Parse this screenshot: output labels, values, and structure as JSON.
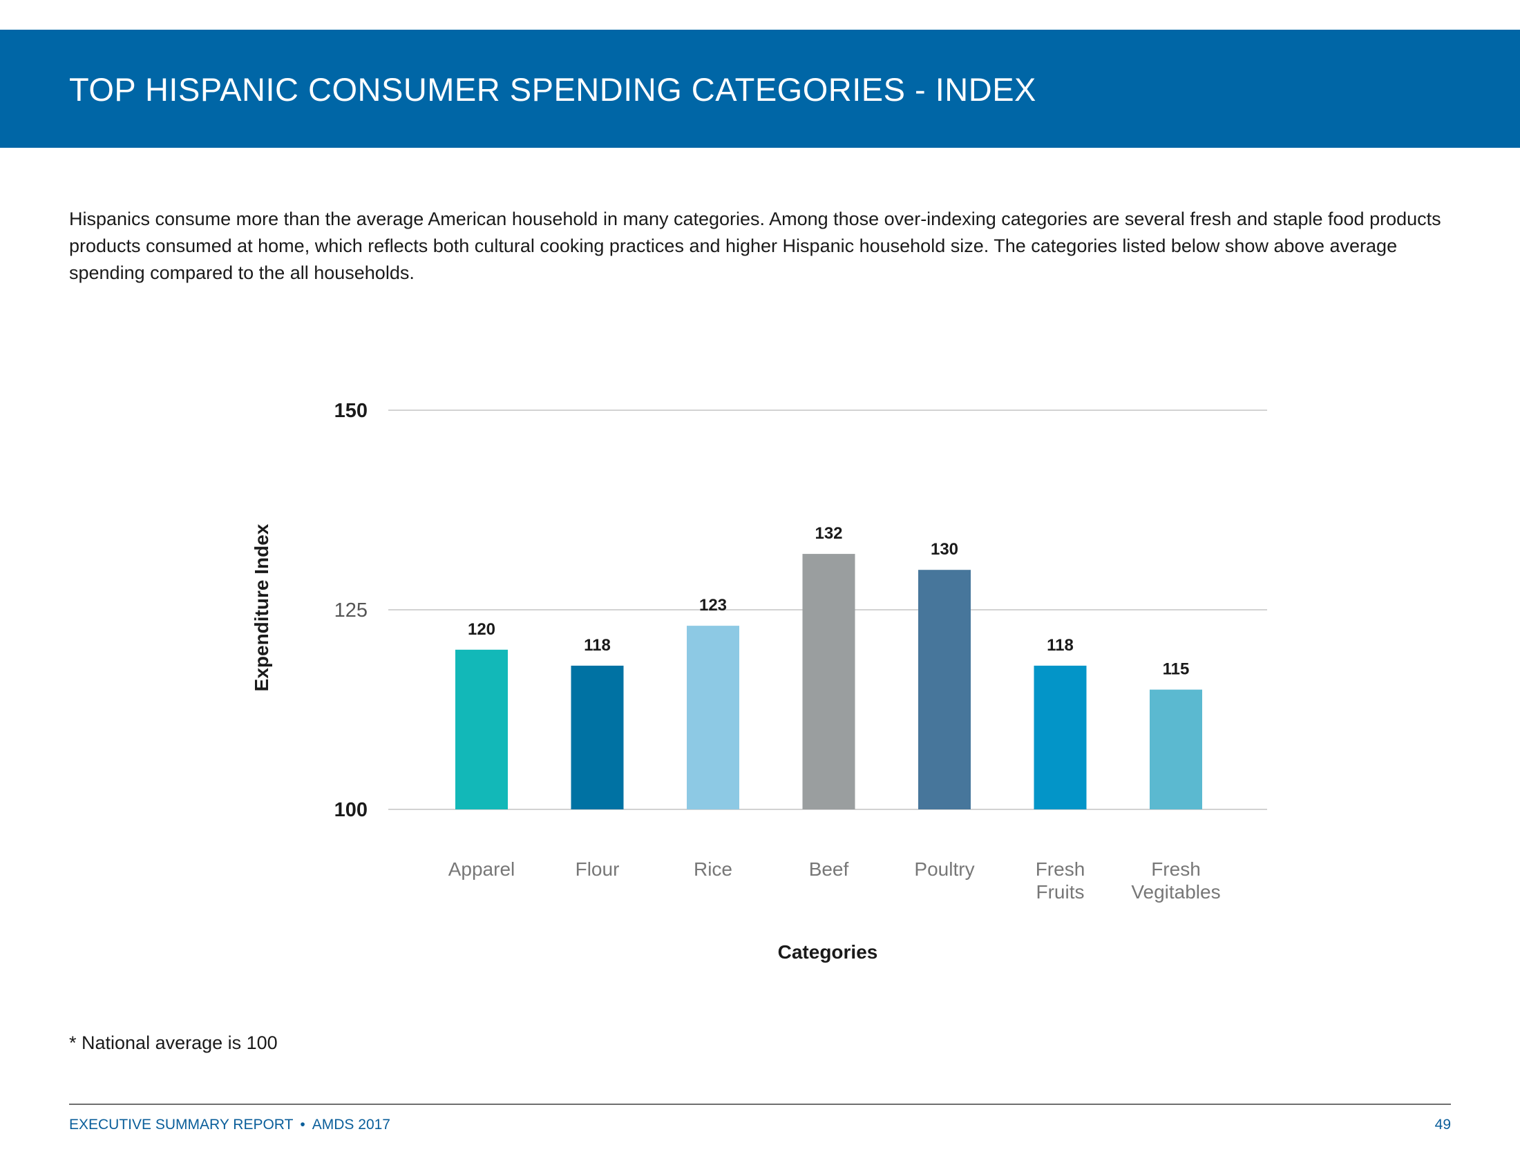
{
  "header": {
    "title": "TOP HISPANIC CONSUMER SPENDING CATEGORIES - INDEX"
  },
  "intro": {
    "text": "Hispanics consume more than the average American household in many categories. Among those over-indexing categories are several fresh and staple food products products consumed at home, which reflects both cultural cooking practices and higher Hispanic household size. The categories listed below show above average spending compared to the all households."
  },
  "chart_data": {
    "type": "bar",
    "title": "",
    "xlabel": "Categories",
    "ylabel": "Expenditure Index",
    "ylim": [
      100,
      150
    ],
    "yticks": [
      {
        "value": 150,
        "label": "150"
      },
      {
        "value": 125,
        "label": "125"
      },
      {
        "value": 100,
        "label": "100"
      }
    ],
    "grid": true,
    "categories": [
      {
        "lines": [
          "Apparel"
        ]
      },
      {
        "lines": [
          "Flour"
        ]
      },
      {
        "lines": [
          "Rice"
        ]
      },
      {
        "lines": [
          "Beef"
        ]
      },
      {
        "lines": [
          "Poultry"
        ]
      },
      {
        "lines": [
          "Fresh",
          "Fruits"
        ]
      },
      {
        "lines": [
          "Fresh",
          "Vegitables"
        ]
      }
    ],
    "values": [
      120,
      118,
      123,
      132,
      130,
      118,
      115
    ],
    "colors": [
      "#12b8b8",
      "#0072a3",
      "#8dc9e4",
      "#9a9e9f",
      "#47769b",
      "#0395c8",
      "#5bb9d0"
    ]
  },
  "footnote": {
    "text": "* National average is 100"
  },
  "footer": {
    "report": "EXECUTIVE SUMMARY REPORT",
    "separator": "•",
    "event": "AMDS 2017",
    "page": "49"
  }
}
